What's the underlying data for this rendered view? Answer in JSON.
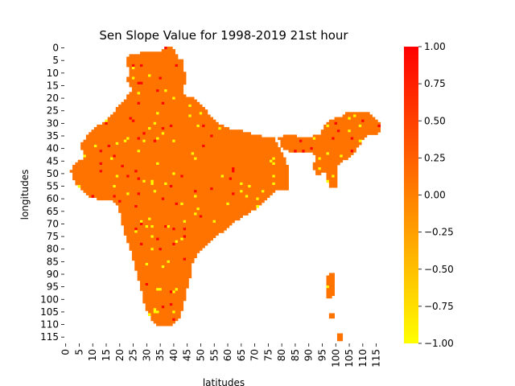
{
  "chart_data": {
    "type": "heatmap",
    "title": "Sen Slope Value for 1998-2019 21st hour",
    "xlabel": "latitudes",
    "ylabel": "longitudes",
    "x_ticks": [
      "0",
      "5",
      "10",
      "15",
      "20",
      "25",
      "30",
      "35",
      "40",
      "45",
      "50",
      "55",
      "60",
      "65",
      "70",
      "75",
      "80",
      "85",
      "90",
      "95",
      "100",
      "105",
      "110",
      "115"
    ],
    "y_ticks": [
      "0",
      "5",
      "10",
      "15",
      "20",
      "25",
      "30",
      "35",
      "40",
      "45",
      "50",
      "55",
      "60",
      "65",
      "70",
      "75",
      "80",
      "85",
      "90",
      "95",
      "100",
      "105",
      "110",
      "115"
    ],
    "grid_size": [
      118,
      118
    ],
    "dominant_value": 0.1,
    "colorbar": {
      "min": -1.0,
      "max": 1.0,
      "ticks": [
        "1.00",
        "0.75",
        "0.50",
        "0.25",
        "0.00",
        "−0.25",
        "−0.50",
        "−0.75",
        "−1.00"
      ],
      "colormap": "autumn_r",
      "color_min": "#ffff00",
      "color_max": "#ff0000"
    },
    "colors": {
      "dominant": "#ff8c00",
      "high_cells": "#ff0000",
      "low_cells": "#ffff00",
      "no_data": "#ffffff"
    }
  }
}
